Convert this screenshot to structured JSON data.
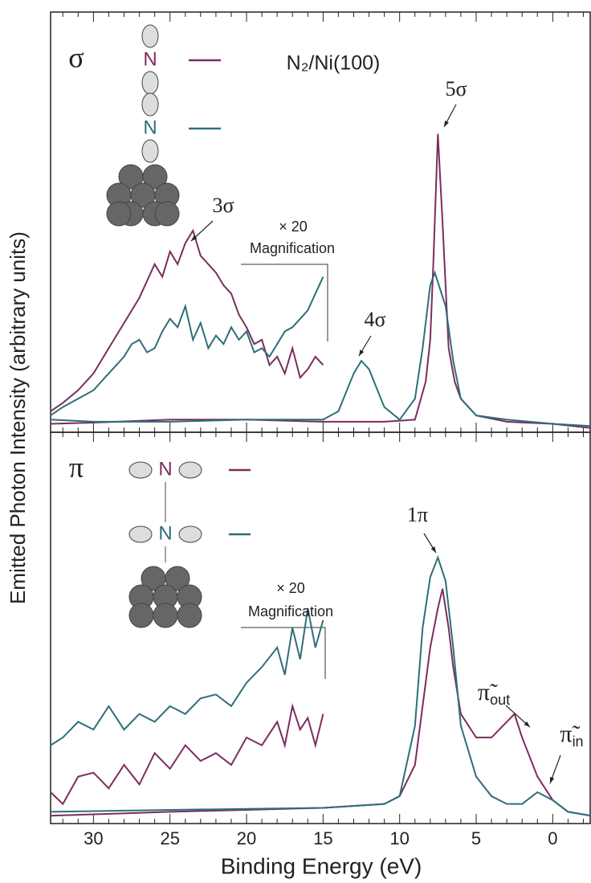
{
  "chart_data": [
    {
      "type": "line",
      "y_label": "Emitted Photon Intensity (arbitrary units)",
      "xlim": [
        32.8,
        -2.5
      ],
      "ylim": [
        0,
        100
      ],
      "xticks": [
        30,
        25,
        20,
        15,
        10,
        5,
        0
      ],
      "xminorticks": [
        32,
        31,
        29,
        28,
        27,
        26,
        24,
        23,
        22,
        21,
        19,
        18,
        17,
        16,
        14,
        13,
        12,
        11,
        9,
        8,
        7,
        6,
        4,
        3,
        2,
        1,
        -1,
        -2
      ],
      "annotations": [
        "σ",
        "N₂/Ni(100)",
        "5σ",
        "4σ",
        "3σ",
        "× 20",
        "Magnification"
      ],
      "series": [
        {
          "name": "N",
          "color": "#7b2d5f",
          "x": [
            32.8,
            30,
            25,
            20,
            15,
            11,
            9,
            8.3,
            8,
            7.8,
            7.5,
            7.2,
            6.8,
            6.4,
            6,
            5,
            3,
            0,
            -2.5
          ],
          "values": [
            2,
            2.3,
            3,
            3,
            2.5,
            2.5,
            3,
            12,
            22,
            40,
            71,
            50,
            20,
            12,
            8,
            4,
            2.5,
            2,
            1
          ]
        },
        {
          "name": "N",
          "color": "#2e6e7a",
          "x": [
            32.8,
            30,
            25,
            20,
            15,
            14,
            13,
            12.5,
            12,
            11,
            10,
            9,
            8.5,
            8,
            7.7,
            7,
            6.5,
            6,
            5,
            3,
            0,
            -2.5
          ],
          "values": [
            3,
            2.5,
            2.5,
            3,
            3,
            5,
            14,
            17,
            15,
            6,
            3,
            8,
            20,
            35,
            38,
            30,
            17,
            8,
            4,
            3,
            2,
            1.5
          ]
        },
        {
          "color": "#7b2d5f",
          "x": [
            32.8,
            32,
            31,
            30,
            29,
            28,
            27,
            26.5,
            26,
            25.5,
            25,
            24.5,
            24,
            23.5,
            23,
            22.5,
            22,
            21.5,
            21,
            20.5,
            20,
            19.5,
            19,
            18.5,
            18,
            17.5,
            17,
            16.5,
            16,
            15.5,
            15
          ],
          "values": [
            5,
            7,
            10,
            14,
            20,
            26,
            32,
            36,
            40,
            37,
            43,
            40,
            45,
            48,
            42,
            40,
            38,
            35,
            33,
            28,
            25,
            21,
            22,
            16,
            18,
            14,
            20,
            13,
            15,
            18,
            16
          ]
        },
        {
          "color": "#2e6e7a",
          "x": [
            32.8,
            32,
            31,
            30,
            29,
            28,
            27.5,
            27,
            26.5,
            26,
            25.5,
            25,
            24.5,
            24,
            23.5,
            23,
            22.5,
            22,
            21.5,
            21,
            20.5,
            20,
            19.5,
            19,
            18.5,
            18,
            17.5,
            17,
            16.5,
            16,
            15.5,
            15
          ],
          "values": [
            4,
            6,
            8,
            10,
            14,
            18,
            21,
            22,
            19,
            20,
            24,
            27,
            25,
            30,
            22,
            26,
            20,
            23,
            21,
            25,
            22,
            24,
            19,
            20,
            18,
            21,
            24,
            25,
            27,
            29,
            33,
            37
          ]
        }
      ]
    },
    {
      "type": "line",
      "x_label": "Binding Energy (eV)",
      "xlim": [
        32.8,
        -2.5
      ],
      "ylim": [
        0,
        100
      ],
      "xticks": [
        30,
        25,
        20,
        15,
        10,
        5,
        0
      ],
      "xminorticks": [
        32,
        31,
        29,
        28,
        27,
        26,
        24,
        23,
        22,
        21,
        19,
        18,
        17,
        16,
        14,
        13,
        12,
        11,
        9,
        8,
        7,
        6,
        4,
        3,
        2,
        1,
        -1,
        -2
      ],
      "annotations": [
        "π",
        "× 20",
        "Magnification",
        "1π",
        {
          "text": "π̃",
          "sub": "out"
        },
        {
          "text": "π̃",
          "sub": "in"
        }
      ],
      "series": [
        {
          "name": "N",
          "color": "#7b2d5f",
          "x": [
            32.8,
            25,
            15,
            11,
            10,
            9,
            8.5,
            8,
            7.5,
            7.2,
            6.8,
            6.5,
            6,
            5,
            4,
            3,
            2.5,
            2,
            1,
            0,
            -1,
            -2.5
          ],
          "values": [
            2,
            3,
            4,
            5,
            7,
            15,
            30,
            45,
            55,
            60,
            50,
            40,
            28,
            22,
            22,
            26,
            28,
            22,
            12,
            6,
            3,
            2
          ]
        },
        {
          "name": "N",
          "color": "#2e6e7a",
          "x": [
            32.8,
            25,
            15,
            11,
            10,
            9,
            8.5,
            8,
            7.5,
            7,
            6.5,
            6,
            5,
            4,
            3,
            2,
            1,
            0,
            -1,
            -2.5
          ],
          "values": [
            3,
            3.5,
            4,
            5,
            7,
            25,
            50,
            63,
            68,
            62,
            45,
            25,
            12,
            7,
            5,
            5,
            8,
            6,
            3,
            2
          ]
        },
        {
          "color": "#7b2d5f",
          "x": [
            32.8,
            32,
            31,
            30,
            29,
            28,
            27,
            26,
            25,
            24,
            23,
            22,
            21,
            20,
            19,
            18,
            17.5,
            17,
            16.5,
            16,
            15.5,
            15
          ],
          "values": [
            8,
            5,
            12,
            13,
            9,
            15,
            10,
            18,
            14,
            20,
            16,
            18,
            15,
            22,
            20,
            26,
            20,
            30,
            24,
            27,
            20,
            28
          ]
        },
        {
          "color": "#2e6e7a",
          "x": [
            32.8,
            32,
            31,
            30,
            29,
            28,
            27,
            26,
            25,
            24,
            23,
            22,
            21,
            20,
            19,
            18,
            17.5,
            17,
            16.5,
            16,
            15.5,
            15
          ],
          "values": [
            20,
            22,
            26,
            24,
            30,
            24,
            28,
            26,
            30,
            28,
            32,
            33,
            30,
            36,
            40,
            45,
            38,
            50,
            42,
            55,
            45,
            52
          ]
        }
      ]
    }
  ]
}
